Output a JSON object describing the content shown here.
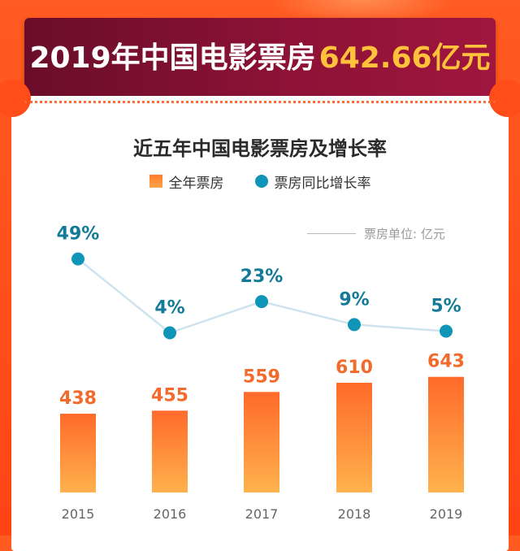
{
  "header": {
    "title_main": "2019年中国电影票房",
    "title_value": "642.66亿元"
  },
  "chart_data": {
    "type": "bar",
    "title": "近五年中国电影票房及增长率",
    "unit_note": "票房单位: 亿元",
    "legend_position": "top",
    "categories": [
      "2015",
      "2016",
      "2017",
      "2018",
      "2019"
    ],
    "series": [
      {
        "name": "全年票房",
        "type": "bar",
        "values": [
          438,
          455,
          559,
          610,
          643
        ],
        "labels": [
          "438",
          "455",
          "559",
          "610",
          "643"
        ],
        "color": "#ff7a2a"
      },
      {
        "name": "票房同比增长率",
        "type": "line",
        "values": [
          49,
          4,
          23,
          9,
          5
        ],
        "labels": [
          "49%",
          "4%",
          "23%",
          "9%",
          "5%"
        ],
        "color": "#0f95b7"
      }
    ],
    "grid": false
  },
  "colors": {
    "bar_top": "#ff6a2a",
    "bar_bottom": "#ffb24d",
    "bar_label": "#f26a2c",
    "dot": "#0f95b7",
    "dot_label": "#137a98",
    "line": "#cfe3ee",
    "axis_label": "#666666"
  }
}
